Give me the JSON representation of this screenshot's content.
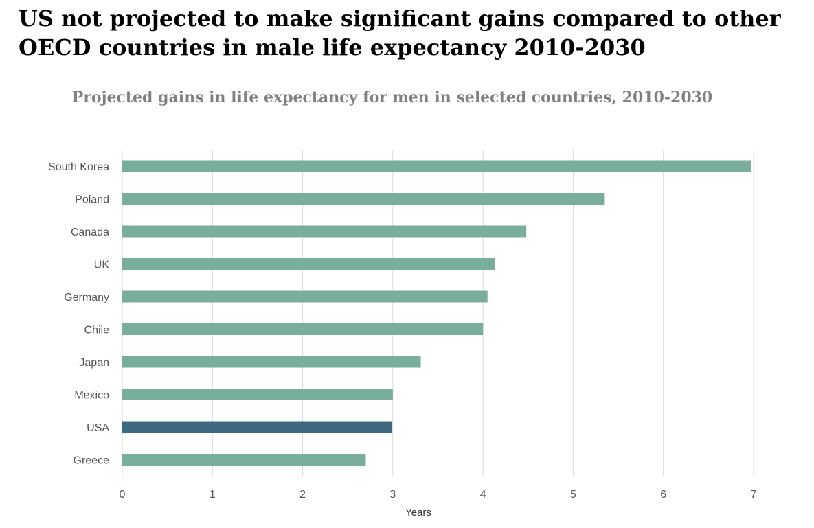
{
  "headline": "US not projected to make significant gains compared to other OECD countries in male life expectancy 2010-2030",
  "chart_data": {
    "type": "bar",
    "orientation": "horizontal",
    "title": "Projected gains in life expectancy for men in selected countries, 2010-2030",
    "xlabel": "Years",
    "ylabel": "",
    "xlim": [
      0,
      7
    ],
    "xticks": [
      0,
      1,
      2,
      3,
      4,
      5,
      6,
      7
    ],
    "grid": true,
    "categories": [
      "South Korea",
      "Poland",
      "Canada",
      "UK",
      "Germany",
      "Chile",
      "Japan",
      "Mexico",
      "USA",
      "Greece"
    ],
    "values": [
      6.97,
      5.35,
      4.48,
      4.13,
      4.05,
      4.0,
      3.31,
      3.0,
      2.99,
      2.7
    ],
    "highlight": "USA",
    "colors": {
      "bar": "#79ae9b",
      "highlight": "#3d6a7e",
      "grid": "#d9d9d9"
    }
  }
}
